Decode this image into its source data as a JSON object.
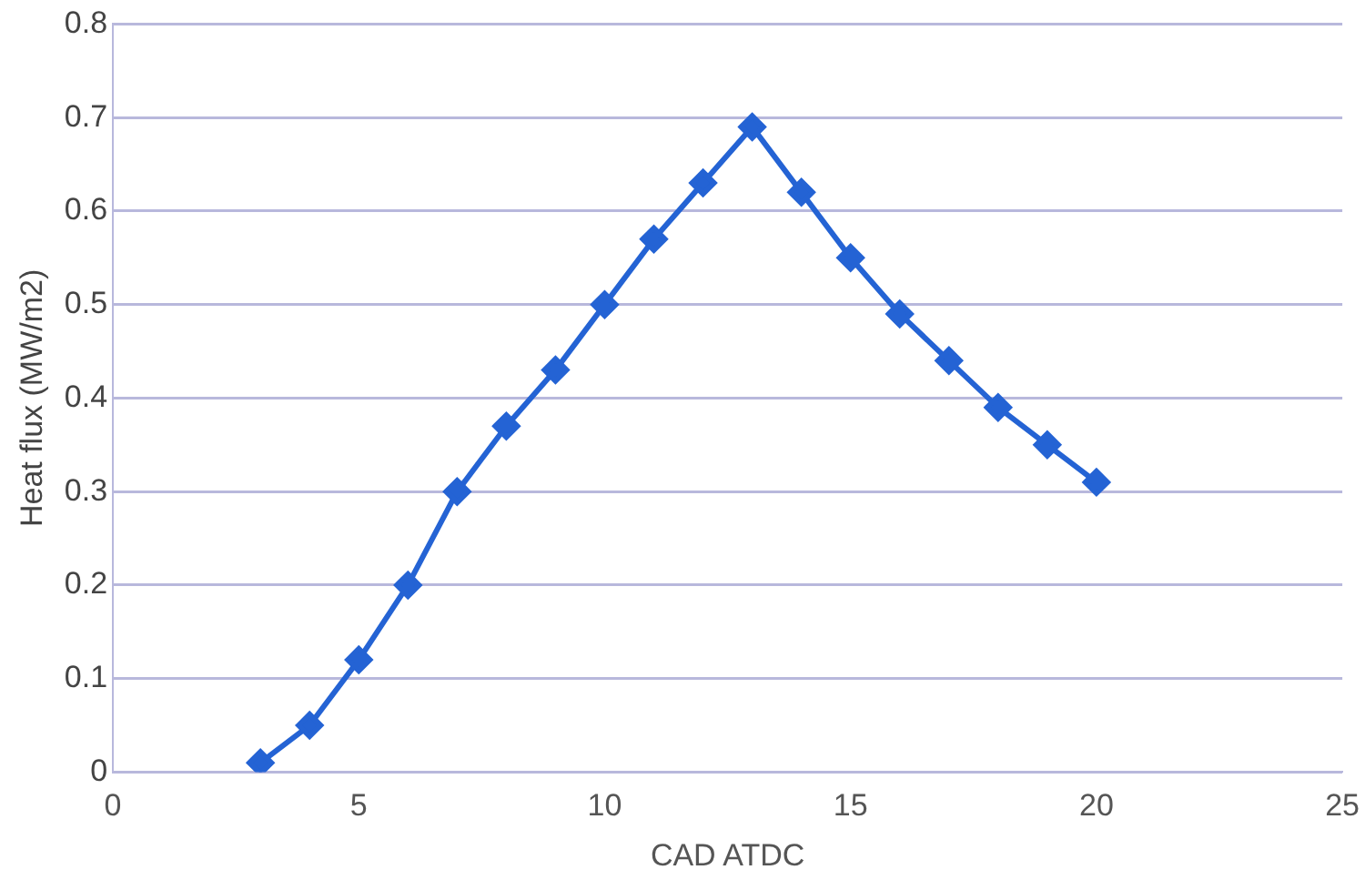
{
  "chart_data": {
    "type": "line",
    "xlabel": "CAD ATDC",
    "ylabel": "Heat flux (MW/m2)",
    "x": [
      3,
      4,
      5,
      6,
      7,
      8,
      9,
      10,
      11,
      12,
      13,
      14,
      15,
      16,
      17,
      18,
      19,
      20
    ],
    "series": [
      {
        "color": "#2463d4",
        "values": [
          0.01,
          0.05,
          0.12,
          0.2,
          0.3,
          0.37,
          0.43,
          0.5,
          0.57,
          0.63,
          0.69,
          0.62,
          0.55,
          0.49,
          0.44,
          0.39,
          0.35,
          0.31
        ]
      }
    ],
    "xlim": [
      0,
      25
    ],
    "xticks": [
      0,
      5,
      10,
      15,
      20,
      25
    ],
    "ylim": [
      0,
      0.8
    ],
    "yticks": [
      0,
      0.1,
      0.2,
      0.3,
      0.4,
      0.5,
      0.6,
      0.7,
      0.8
    ],
    "grid": "y",
    "legend": false,
    "marker": "diamond",
    "line_style": "solid"
  }
}
